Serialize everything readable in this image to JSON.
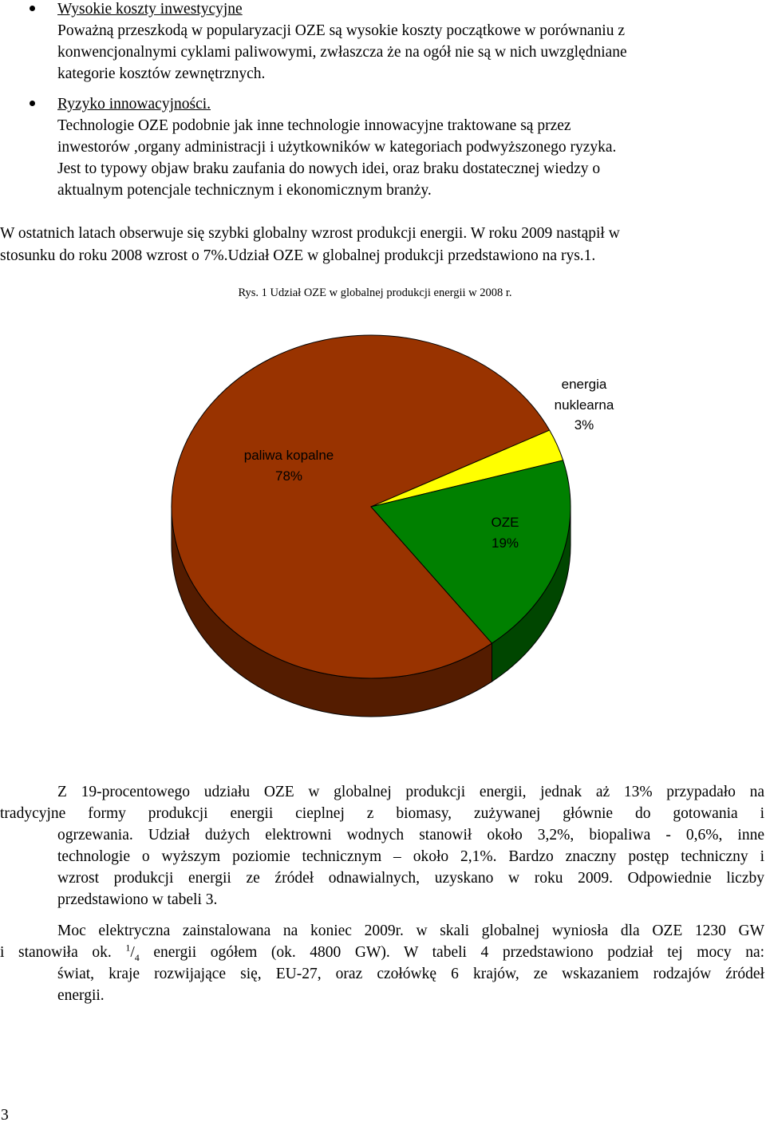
{
  "bullets": [
    {
      "heading": "Wysokie koszty inwestycyjne",
      "lines": [
        "Poważną przeszkodą w popularyzacji OZE są wysokie koszty początkowe w porównaniu z",
        "konwencjonalnymi cyklami paliwowymi, zwłaszcza że na ogół nie są w nich uwzględniane",
        "kategorie kosztów zewnętrznych."
      ]
    },
    {
      "heading": "Ryzyko innowacyjności.",
      "lines": [
        "Technologie OZE podobnie jak inne technologie innowacyjne traktowane są przez",
        "inwestorów ,organy administracji i użytkowników w kategoriach podwyższonego ryzyka.",
        "Jest to typowy objaw braku zaufania do nowych idei, oraz braku dostatecznej wiedzy o",
        "aktualnym potencjale technicznym i ekonomicznym branży."
      ]
    }
  ],
  "intro": {
    "lines": [
      "W ostatnich latach obserwuje się szybki globalny wzrost produkcji energii. W roku 2009 nastąpił w",
      "stosunku do roku 2008 wzrost o 7%.Udział OZE w globalnej produkcji przedstawiono na rys.1."
    ]
  },
  "figure_caption": "Rys. 1 Udział OZE w globalnej produkcji energii w 2008 r.",
  "chart_data": {
    "type": "pie",
    "categories": [
      "paliwa kopalne",
      "energia nuklearna",
      "OZE"
    ],
    "values": [
      78,
      3,
      19
    ],
    "value_labels": [
      "78%",
      "3%",
      "19%"
    ],
    "colors": [
      "#993300",
      "#ffff00",
      "#008000"
    ]
  },
  "paragraphs": [
    {
      "lines": [
        "Z 19-procentowego udziału OZE w globalnej produkcji energii, jednak aż 13% przypadało na",
        "tradycyjne formy produkcji energii cieplnej z biomasy, zużywanej głównie do gotowania i",
        "ogrzewania. Udział dużych elektrowni wodnych stanowił około 3,2%, biopaliwa - 0,6%, inne",
        "technologie o wyższym poziomie technicznym – około 2,1%. Bardzo znaczny postęp techniczny i",
        "wzrost produkcji energii ze źródeł odnawialnych, uzyskano w roku 2009. Odpowiednie liczby",
        "przedstawiono w tabeli 3."
      ]
    },
    {
      "lines": [
        "Moc elektryczna zainstalowana na koniec 2009r. w skali globalnej wyniosła dla OZE 1230 GW",
        {
          "before": "i stanowiła ok.",
          "sup": "1",
          "slash": "/",
          "sub": "4",
          "after": "energii ogółem (ok. 4800 GW). W tabeli 4 przedstawiono podział tej mocy na:"
        },
        "świat, kraje rozwijające się, EU-27, oraz czołówkę 6 krajów, ze wskazaniem rodzajów źródeł",
        "energii."
      ]
    }
  ],
  "page_number": "3"
}
